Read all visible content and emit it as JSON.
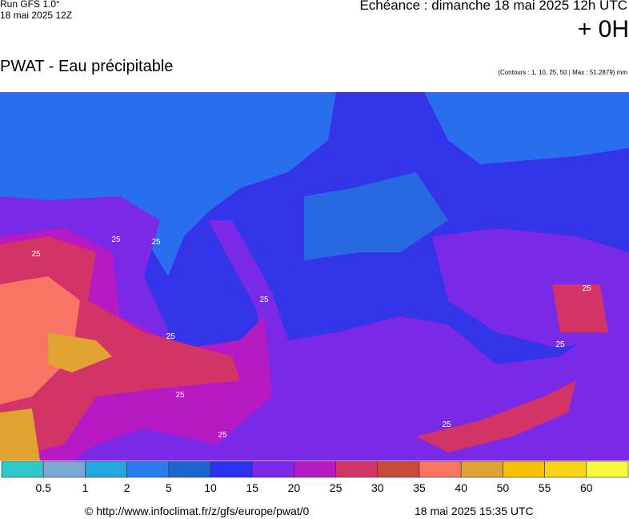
{
  "header": {
    "run": "Run GFS 1.0°",
    "run_date": "18 mai 2025 12Z",
    "valid": "Echéance : dimanche 18 mai 2025 12h UTC",
    "lead": "+ 0H",
    "title": "PWAT - Eau précipitable",
    "contours_note": "(Contours : 1, 10, 25, 50 | Max : 51.2879) mm"
  },
  "map": {
    "contour_labels": [
      "25",
      "25",
      "25",
      "25",
      "25",
      "25",
      "25",
      "25",
      "25",
      "25"
    ]
  },
  "legend": {
    "colors": [
      "#2ec8c8",
      "#7aa8d0",
      "#22a8e0",
      "#2a7cf0",
      "#1a66d0",
      "#2a32f0",
      "#7a2ae6",
      "#b61ac2",
      "#d23468",
      "#c84a3a",
      "#f87464",
      "#e0a232",
      "#f8c000",
      "#f8d414",
      "#f8f840"
    ],
    "labels": [
      "0.5",
      "1",
      "2",
      "5",
      "10",
      "15",
      "20",
      "25",
      "30",
      "35",
      "40",
      "50",
      "55",
      "60"
    ]
  },
  "footer": {
    "url": "© http://www.infoclimat.fr/z/gfs/europe/pwat/0",
    "generated": "18 mai 2025 15:35 UTC"
  }
}
